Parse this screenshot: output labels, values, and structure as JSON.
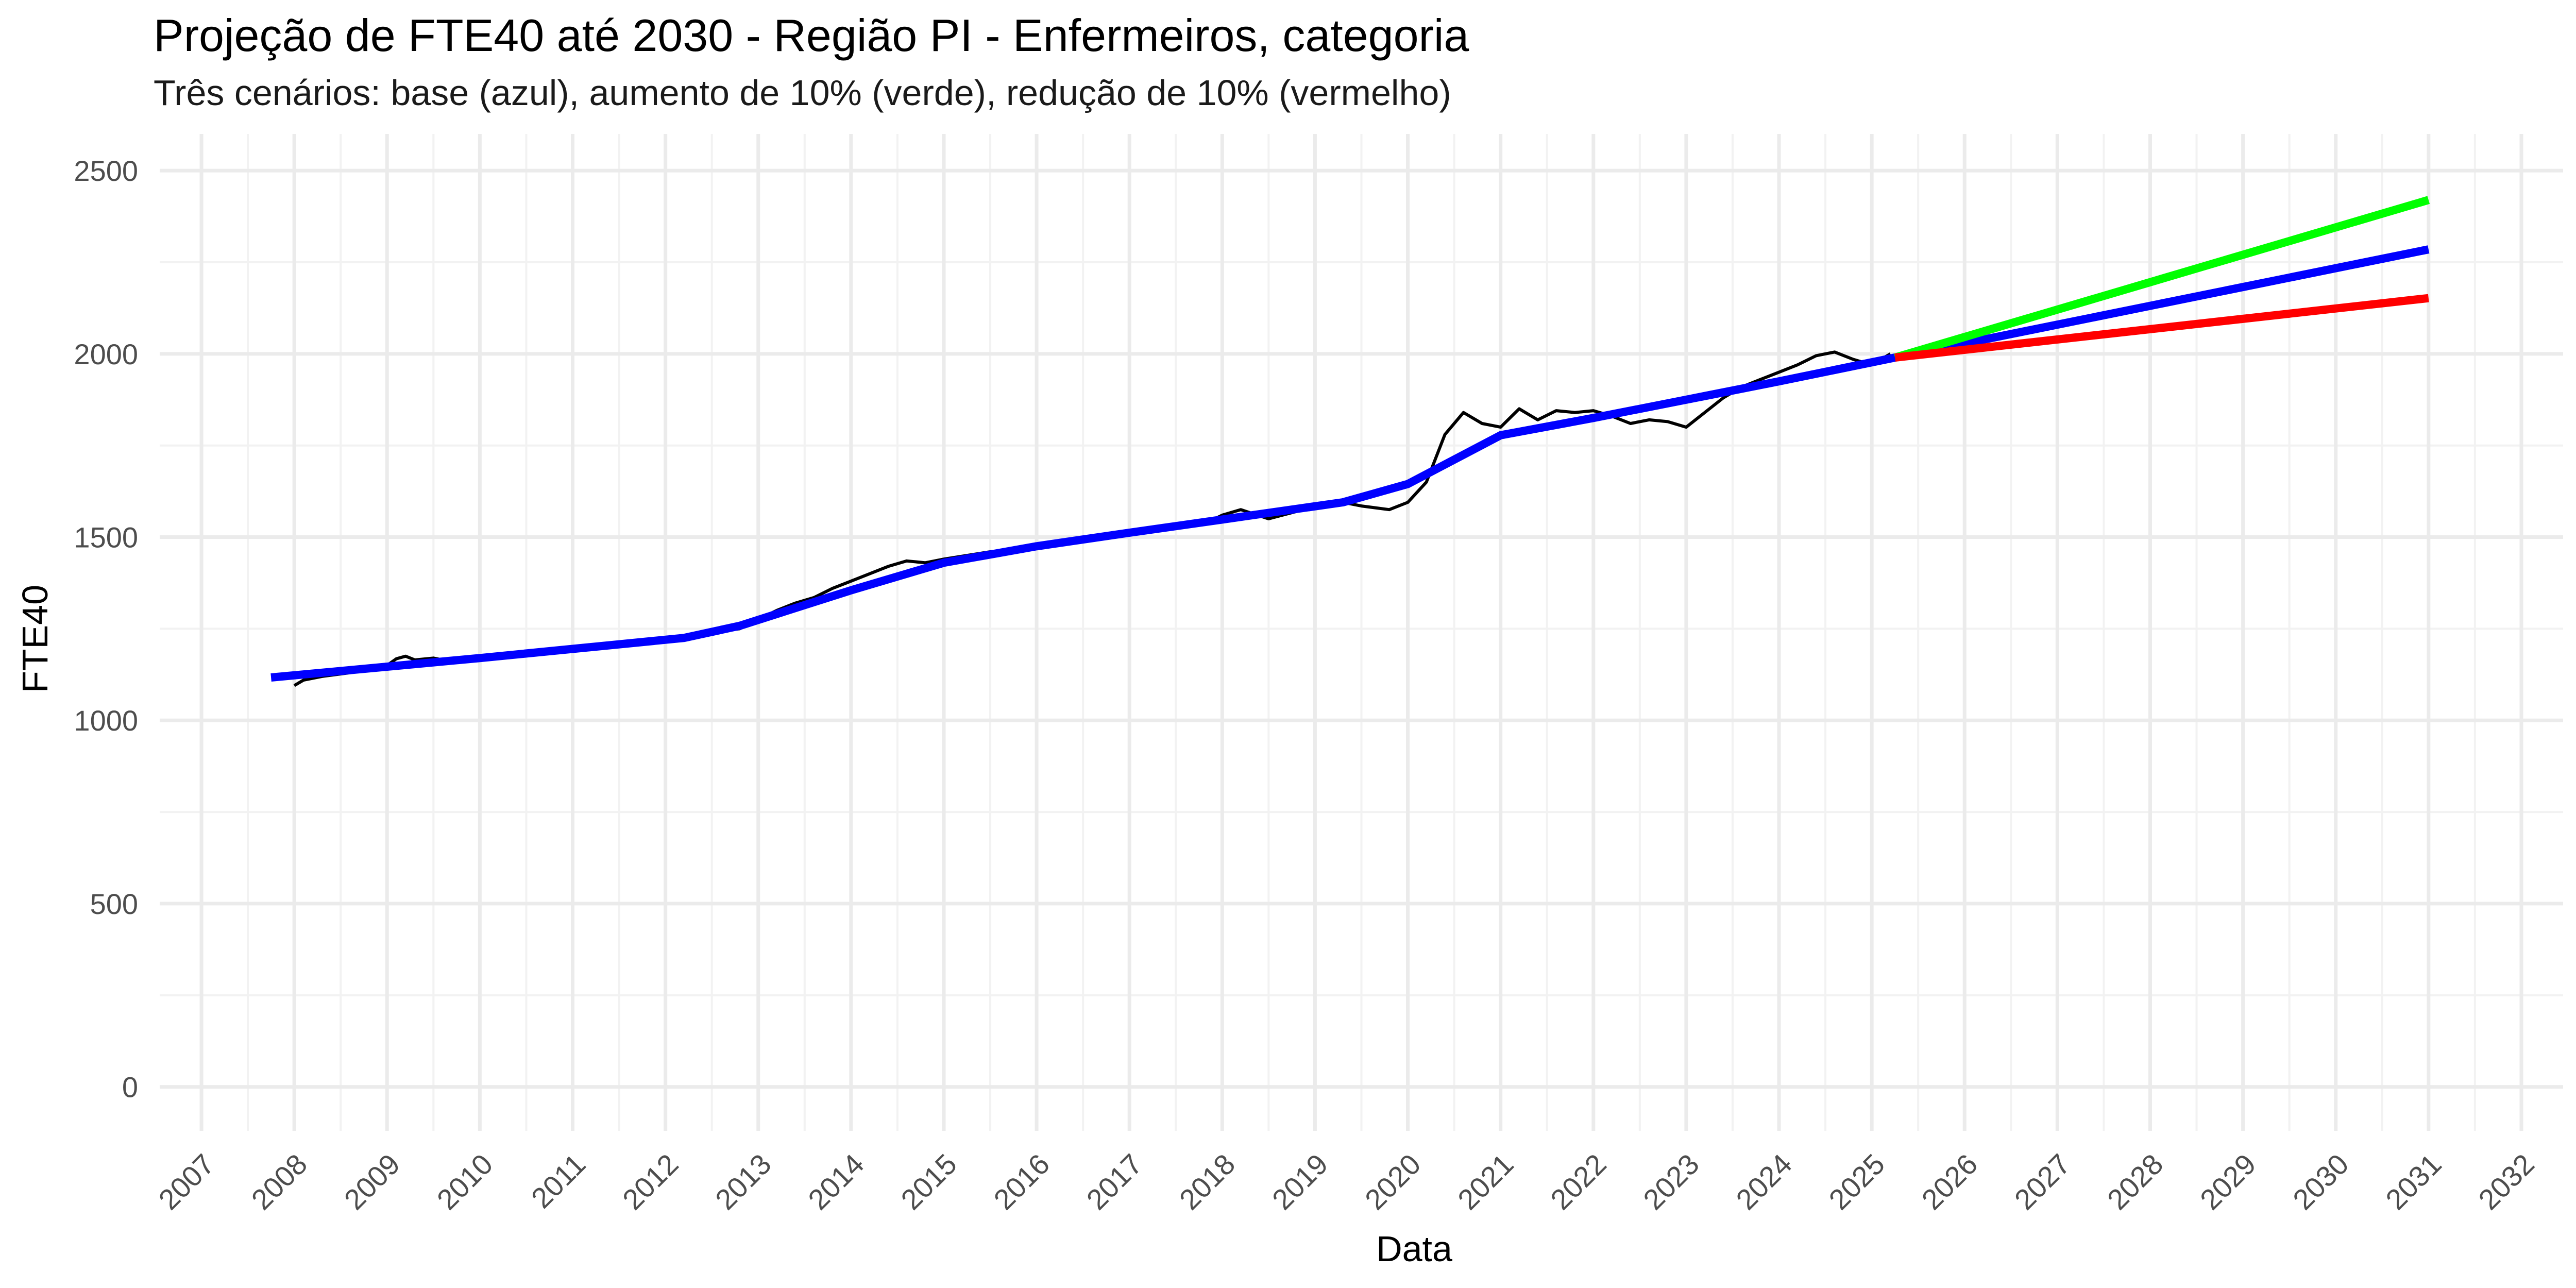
{
  "chart_data": {
    "type": "line",
    "title": "Projeção de FTE40 até 2030 - Região PI - Enfermeiros, categoria",
    "subtitle": "Três cenários: base (azul), aumento de 10% (verde), redução de 10% (vermelho)",
    "xlabel": "Data",
    "ylabel": "FTE40",
    "xlim": [
      2006.55,
      2032.45
    ],
    "ylim": [
      -120,
      2600
    ],
    "x_ticks": [
      "2007",
      "2008",
      "2009",
      "2010",
      "2011",
      "2012",
      "2013",
      "2014",
      "2015",
      "2016",
      "2017",
      "2018",
      "2019",
      "2020",
      "2021",
      "2022",
      "2023",
      "2024",
      "2025",
      "2026",
      "2027",
      "2028",
      "2029",
      "2030",
      "2031",
      "2032"
    ],
    "y_ticks": [
      0,
      500,
      1000,
      1500,
      2000,
      2500
    ],
    "grid": true,
    "legend": "none",
    "series": [
      {
        "color": "#000000",
        "x": [
          2008.0,
          2008.1,
          2008.3,
          2008.6,
          2009.0,
          2009.1,
          2009.2,
          2009.3,
          2009.5,
          2009.7,
          2010.0,
          2010.5,
          2011.0,
          2011.5,
          2012.0,
          2012.5,
          2012.8,
          2013.0,
          2013.2,
          2013.4,
          2013.6,
          2013.8,
          2014.0,
          2014.2,
          2014.4,
          2014.6,
          2014.8,
          2015.0,
          2015.5,
          2016.0,
          2016.5,
          2017.0,
          2017.5,
          2017.8,
          2018.0,
          2018.2,
          2018.5,
          2018.8,
          2019.0,
          2019.3,
          2019.5,
          2019.8,
          2020.0,
          2020.2,
          2020.4,
          2020.6,
          2020.8,
          2021.0,
          2021.2,
          2021.4,
          2021.6,
          2021.8,
          2022.0,
          2022.2,
          2022.4,
          2022.6,
          2022.8,
          2023.0,
          2023.2,
          2023.4,
          2023.6,
          2023.8,
          2024.0,
          2024.2,
          2024.4,
          2024.6,
          2024.8,
          2025.0,
          2025.2
        ],
        "y": [
          1095,
          1110,
          1120,
          1130,
          1150,
          1168,
          1175,
          1165,
          1170,
          1160,
          1172,
          1180,
          1195,
          1205,
          1215,
          1240,
          1250,
          1275,
          1300,
          1320,
          1335,
          1360,
          1380,
          1400,
          1420,
          1435,
          1430,
          1440,
          1460,
          1470,
          1490,
          1510,
          1525,
          1535,
          1560,
          1575,
          1550,
          1570,
          1580,
          1595,
          1585,
          1575,
          1595,
          1650,
          1780,
          1840,
          1810,
          1800,
          1850,
          1820,
          1845,
          1840,
          1845,
          1830,
          1810,
          1820,
          1815,
          1800,
          1840,
          1880,
          1910,
          1930,
          1950,
          1970,
          1995,
          2005,
          1985,
          1970,
          2000
        ]
      },
      {
        "color": "#0000ff",
        "x": [
          2007.75,
          2010.0,
          2012.2,
          2012.8,
          2014.0,
          2015.0,
          2016.0,
          2017.0,
          2018.0,
          2019.3,
          2020.0,
          2021.0,
          2022.0,
          2023.0,
          2024.0,
          2025.25,
          2031.0
        ],
        "y": [
          1117,
          1170,
          1225,
          1258,
          1355,
          1430,
          1475,
          1512,
          1548,
          1595,
          1645,
          1778,
          1825,
          1875,
          1925,
          1990,
          2285
        ]
      },
      {
        "color": "#00ff00",
        "x": [
          2025.25,
          2031.0
        ],
        "y": [
          1990,
          2420
        ]
      },
      {
        "color": "#ff0000",
        "x": [
          2025.25,
          2031.0
        ],
        "y": [
          1990,
          2152
        ]
      }
    ]
  }
}
